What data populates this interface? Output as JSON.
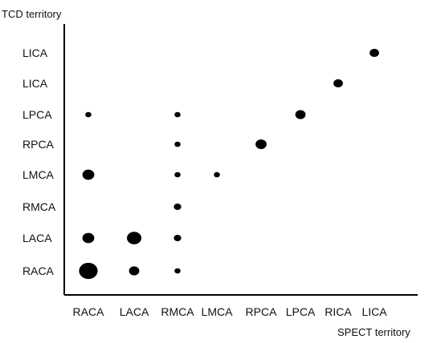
{
  "chart_data": {
    "type": "scatter",
    "title": "",
    "ylabel": "TCD territory",
    "xlabel": "SPECT territory",
    "x_categories": [
      "RACA",
      "LACA",
      "RMCA",
      "LMCA",
      "RPCA",
      "LPCA",
      "RICA",
      "LICA"
    ],
    "y_categories": [
      "RACA",
      "LACA",
      "RMCA",
      "LMCA",
      "RPCA",
      "LPCA",
      "LICA",
      "LICA"
    ],
    "grid": false,
    "legend": "none",
    "marker_color": "#000000",
    "points": [
      {
        "x": "RACA",
        "y_index": 0,
        "size": 10
      },
      {
        "x": "RACA",
        "y_index": 1,
        "size": 4
      },
      {
        "x": "RACA",
        "y_index": 3,
        "size": 4
      },
      {
        "x": "RACA",
        "y_index": 5,
        "size": 1
      },
      {
        "x": "LACA",
        "y_index": 0,
        "size": 3
      },
      {
        "x": "LACA",
        "y_index": 1,
        "size": 6
      },
      {
        "x": "RMCA",
        "y_index": 0,
        "size": 1
      },
      {
        "x": "RMCA",
        "y_index": 1,
        "size": 1.5
      },
      {
        "x": "RMCA",
        "y_index": 2,
        "size": 1.5
      },
      {
        "x": "RMCA",
        "y_index": 3,
        "size": 1
      },
      {
        "x": "RMCA",
        "y_index": 4,
        "size": 1
      },
      {
        "x": "RMCA",
        "y_index": 5,
        "size": 1
      },
      {
        "x": "LMCA",
        "y_index": 3,
        "size": 1
      },
      {
        "x": "RPCA",
        "y_index": 4,
        "size": 3.5
      },
      {
        "x": "LPCA",
        "y_index": 5,
        "size": 3
      },
      {
        "x": "RICA",
        "y_index": 6,
        "size": 2.5
      },
      {
        "x": "LICA",
        "y_index": 7,
        "size": 2.5
      }
    ]
  }
}
